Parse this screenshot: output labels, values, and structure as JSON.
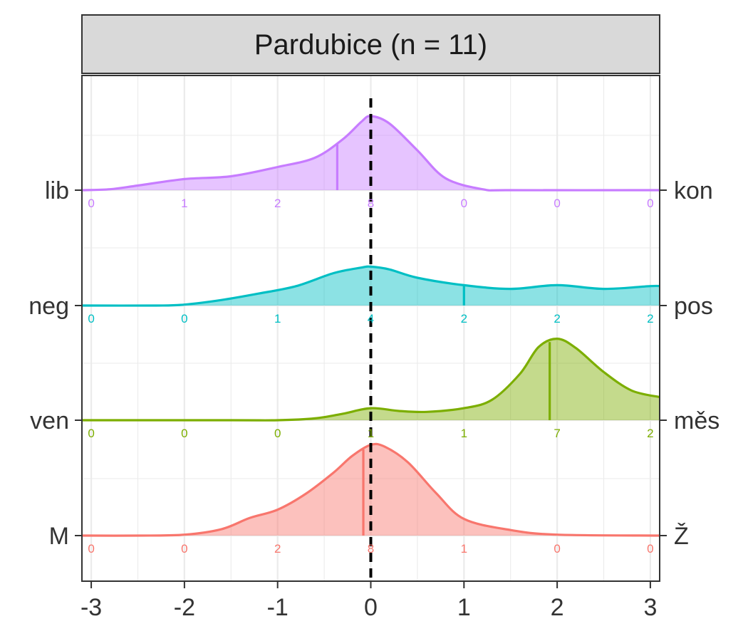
{
  "chart_data": {
    "type": "ridgeline-density",
    "title": "Pardubice (n = 11)",
    "xlim": [
      -3.1,
      3.1
    ],
    "x_ticks": [
      "-3",
      "-2",
      "-1",
      "0",
      "1",
      "2",
      "3"
    ],
    "x_tick_values": [
      -3,
      -2,
      -1,
      0,
      1,
      2,
      3
    ],
    "grid": true,
    "reference_line": {
      "x": 0,
      "style": "dashed",
      "color": "#000000"
    },
    "count_positions": [
      -3,
      -2,
      -1,
      0,
      1,
      2,
      3
    ],
    "series": [
      {
        "left_label": "M",
        "right_label": "Ž",
        "color": "#F8766D",
        "median": -0.08,
        "density": [
          [
            -3.1,
            0.0
          ],
          [
            -2.5,
            0.0
          ],
          [
            -2.0,
            0.01
          ],
          [
            -1.6,
            0.07
          ],
          [
            -1.3,
            0.19
          ],
          [
            -1.0,
            0.28
          ],
          [
            -0.7,
            0.45
          ],
          [
            -0.4,
            0.68
          ],
          [
            -0.2,
            0.86
          ],
          [
            0.0,
            0.98
          ],
          [
            0.15,
            0.96
          ],
          [
            0.4,
            0.79
          ],
          [
            0.7,
            0.46
          ],
          [
            1.0,
            0.18
          ],
          [
            1.5,
            0.06
          ],
          [
            2.0,
            0.01
          ],
          [
            3.1,
            0.0
          ]
        ],
        "counts": [
          0,
          0,
          2,
          8,
          1,
          0,
          0
        ]
      },
      {
        "left_label": "ven",
        "right_label": "měs",
        "color": "#7CAE00",
        "median": 1.92,
        "density": [
          [
            -3.1,
            0.0
          ],
          [
            -1.5,
            0.0
          ],
          [
            -1.0,
            0.0
          ],
          [
            -0.6,
            0.02
          ],
          [
            -0.3,
            0.07
          ],
          [
            0.0,
            0.13
          ],
          [
            0.3,
            0.1
          ],
          [
            0.6,
            0.09
          ],
          [
            1.0,
            0.13
          ],
          [
            1.3,
            0.22
          ],
          [
            1.6,
            0.5
          ],
          [
            1.8,
            0.79
          ],
          [
            2.0,
            0.88
          ],
          [
            2.2,
            0.78
          ],
          [
            2.5,
            0.52
          ],
          [
            2.8,
            0.32
          ],
          [
            3.1,
            0.25
          ]
        ],
        "counts": [
          0,
          0,
          0,
          1,
          1,
          7,
          2
        ]
      },
      {
        "left_label": "neg",
        "right_label": "pos",
        "color": "#00BFC4",
        "median": 1.0,
        "density": [
          [
            -3.1,
            0.0
          ],
          [
            -2.3,
            0.0
          ],
          [
            -2.0,
            0.01
          ],
          [
            -1.6,
            0.06
          ],
          [
            -1.2,
            0.13
          ],
          [
            -0.8,
            0.21
          ],
          [
            -0.4,
            0.35
          ],
          [
            -0.1,
            0.41
          ],
          [
            0.0,
            0.42
          ],
          [
            0.2,
            0.39
          ],
          [
            0.5,
            0.3
          ],
          [
            1.0,
            0.22
          ],
          [
            1.5,
            0.18
          ],
          [
            2.0,
            0.22
          ],
          [
            2.5,
            0.18
          ],
          [
            3.0,
            0.21
          ],
          [
            3.1,
            0.21
          ]
        ],
        "counts": [
          0,
          0,
          1,
          4,
          2,
          2,
          2
        ]
      },
      {
        "left_label": "lib",
        "right_label": "kon",
        "color": "#C77CFF",
        "median": -0.36,
        "density": [
          [
            -3.1,
            0.0
          ],
          [
            -2.8,
            0.01
          ],
          [
            -2.5,
            0.05
          ],
          [
            -2.0,
            0.12
          ],
          [
            -1.5,
            0.15
          ],
          [
            -1.0,
            0.25
          ],
          [
            -0.6,
            0.35
          ],
          [
            -0.3,
            0.55
          ],
          [
            -0.1,
            0.74
          ],
          [
            0.0,
            0.8
          ],
          [
            0.2,
            0.72
          ],
          [
            0.5,
            0.43
          ],
          [
            0.8,
            0.13
          ],
          [
            1.2,
            0.01
          ],
          [
            1.5,
            0.0
          ],
          [
            3.1,
            0.0
          ]
        ],
        "counts": [
          0,
          1,
          2,
          8,
          0,
          0,
          0
        ]
      }
    ]
  }
}
